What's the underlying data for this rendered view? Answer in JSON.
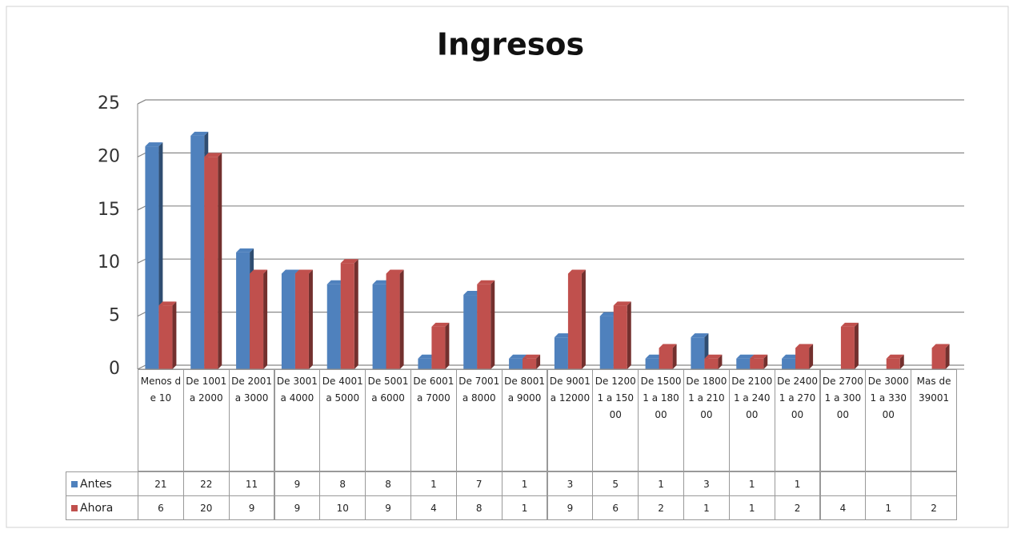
{
  "chart_data": {
    "type": "bar",
    "title": "Ingresos",
    "categories": [
      "Menos de 10",
      "De 1001 a 2000",
      "De 2001 a 3000",
      "De 3001 a 4000",
      "De 4001 a 5000",
      "De 5001 a 6000",
      "De 6001 a 7000",
      "De 7001 a 8000",
      "De 8001 a 9000",
      "De 9001 a 12000",
      "De 12001 a 15000",
      "De 15001 a 18000",
      "De 18001 a 21000",
      "De 21001 a 24000",
      "De 24001 a 27000",
      "De 27001 a 30000",
      "De 30001 a 33000",
      "Mas de 39001"
    ],
    "series": [
      {
        "name": "Antes",
        "color": "#4f81bd",
        "values": [
          21,
          22,
          11,
          9,
          8,
          8,
          1,
          7,
          1,
          3,
          5,
          1,
          3,
          1,
          1,
          null,
          null,
          null
        ]
      },
      {
        "name": "Ahora",
        "color": "#c0504d",
        "values": [
          6,
          20,
          9,
          9,
          10,
          9,
          4,
          8,
          1,
          9,
          6,
          2,
          1,
          1,
          2,
          4,
          1,
          2
        ]
      }
    ],
    "ylim": [
      0,
      25
    ],
    "yticks": [
      0,
      5,
      10,
      15,
      20,
      25
    ],
    "grid": true
  }
}
